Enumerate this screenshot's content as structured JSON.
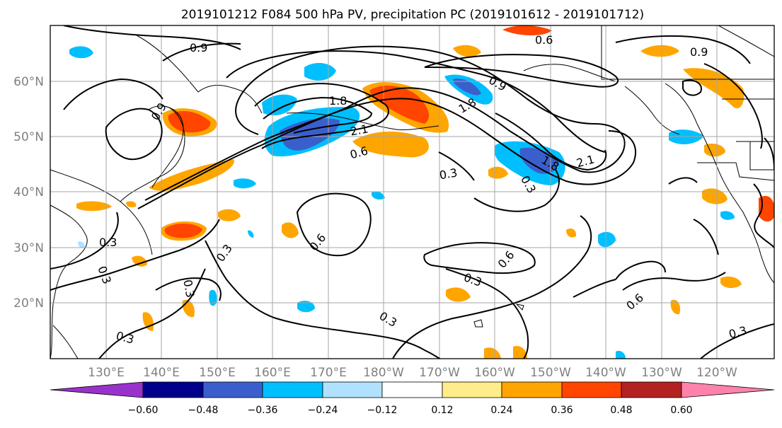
{
  "title": "2019101212 F084 500 hPa PV, precipitation PC (2019101612 - 2019101712)",
  "lat_ticks": [
    "60°N",
    "50°N",
    "40°N",
    "30°N",
    "20°N"
  ],
  "lon_ticks": [
    "130°E",
    "140°E",
    "150°E",
    "160°E",
    "170°E",
    "180°W",
    "170°W",
    "160°W",
    "150°W",
    "140°W",
    "130°W",
    "120°W"
  ],
  "colorbar": {
    "ticks": [
      "−0.60",
      "−0.48",
      "−0.36",
      "−0.24",
      "−0.12",
      "0.12",
      "0.24",
      "0.36",
      "0.48",
      "0.60"
    ],
    "colors": [
      "#9932cc",
      "#00008b",
      "#3a5fcd",
      "#00bfff",
      "#b0e2ff",
      "#ffffff",
      "#ffec8b",
      "#ffa500",
      "#ff4500",
      "#b22222",
      "#ff82ab"
    ]
  },
  "contour_labels": [
    "0.9",
    "0.6",
    "0.9",
    "1.8",
    "0.9",
    "2.1",
    "0.6",
    "1.8",
    "0.3",
    "1.8",
    "2.1",
    "0.3",
    "0.3",
    "0.6",
    "0.3",
    "0.3",
    "0.3",
    "0.6",
    "0.3",
    "0.6",
    "0.3",
    "0.3",
    "0.3",
    "0.9"
  ]
}
